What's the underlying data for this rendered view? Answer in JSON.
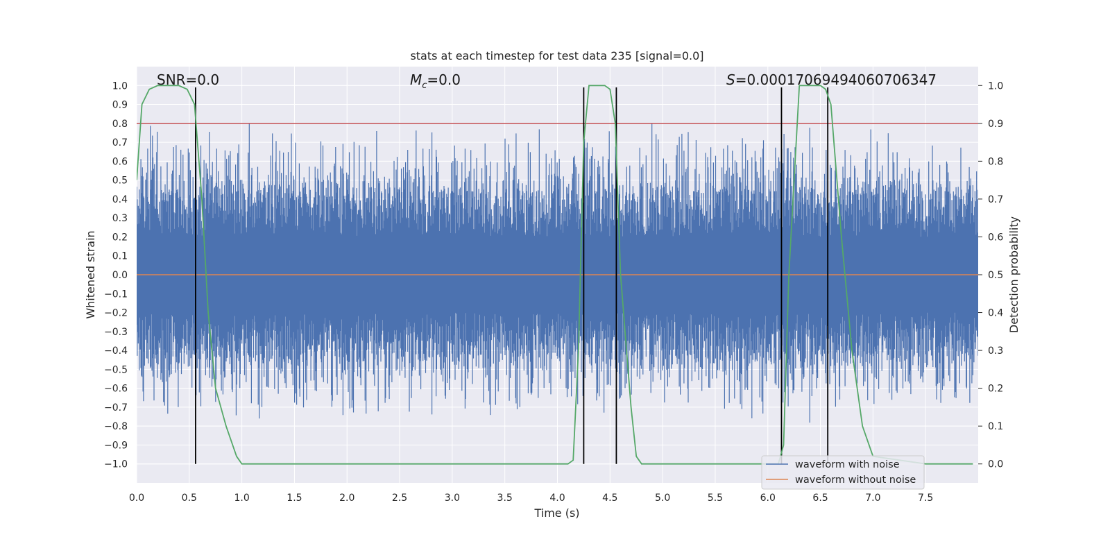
{
  "chart_data": {
    "type": "line",
    "title": "stats at each timestep for test data 235 [signal=0.0]",
    "xlabel": "Time (s)",
    "ylabel": "Whitened strain",
    "y2label": "Detection probability",
    "xlim": [
      0.0,
      8.0
    ],
    "ylim": [
      -1.1,
      1.1
    ],
    "y2lim": [
      -0.05,
      1.05
    ],
    "x_ticks": [
      "0.0",
      "0.5",
      "1.0",
      "1.5",
      "2.0",
      "2.5",
      "3.0",
      "3.5",
      "4.0",
      "4.5",
      "5.0",
      "5.5",
      "6.0",
      "6.5",
      "7.0",
      "7.5"
    ],
    "y_ticks": [
      "1.0",
      "0.9",
      "0.8",
      "0.7",
      "0.6",
      "0.5",
      "0.4",
      "0.3",
      "0.2",
      "0.1",
      "0.0",
      "−0.1",
      "−0.2",
      "−0.3",
      "−0.4",
      "−0.5",
      "−0.6",
      "−0.7",
      "−0.8",
      "−0.9",
      "−1.0"
    ],
    "y2_ticks": [
      "1.0",
      "0.9",
      "0.8",
      "0.7",
      "0.6",
      "0.5",
      "0.4",
      "0.3",
      "0.2",
      "0.1",
      "0.0"
    ],
    "grid": true,
    "legend_position": "lower-right",
    "annotations": {
      "snr": "SNR=0.0",
      "mc_symbol": "M",
      "mc_subscript": "c",
      "mc_value": "=0.0",
      "s_symbol": "S",
      "s_value": "=0.00017069494060706347"
    },
    "series": [
      {
        "name": "waveform with noise",
        "color": "#4c72b0",
        "description_kind": "dense noise, approximate envelope",
        "segments_t": [
          0.0,
          0.5,
          1.0,
          1.5,
          2.0,
          2.5,
          3.0,
          3.5,
          4.0,
          4.5,
          5.0,
          5.5,
          6.0,
          6.5,
          7.0,
          7.5,
          8.0
        ],
        "peak_max": 0.98,
        "peak_min": -1.0
      },
      {
        "name": "waveform without noise",
        "color": "#dd8452",
        "x": [
          0.0,
          8.0
        ],
        "y": [
          0.0,
          0.0
        ]
      },
      {
        "color": "#55a868",
        "axis": "right",
        "x": [
          0.0,
          0.05,
          0.12,
          0.2,
          0.3,
          0.4,
          0.48,
          0.55,
          0.62,
          0.68,
          0.75,
          0.85,
          0.95,
          1.0,
          1.5,
          2.0,
          2.5,
          3.0,
          3.5,
          4.0,
          4.1,
          4.15,
          4.2,
          4.25,
          4.3,
          4.35,
          4.45,
          4.5,
          4.55,
          4.6,
          4.7,
          4.75,
          4.8,
          5.0,
          5.5,
          6.0,
          6.1,
          6.15,
          6.2,
          6.3,
          6.4,
          6.5,
          6.55,
          6.6,
          6.7,
          6.8,
          6.9,
          7.0,
          7.5,
          7.95
        ],
        "y": [
          0.75,
          0.95,
          0.99,
          1.0,
          1.0,
          1.0,
          0.99,
          0.95,
          0.7,
          0.4,
          0.2,
          0.1,
          0.02,
          0.0,
          0.0,
          0.0,
          0.0,
          0.0,
          0.0,
          0.0,
          0.0,
          0.01,
          0.3,
          0.85,
          1.0,
          1.0,
          1.0,
          0.99,
          0.9,
          0.5,
          0.15,
          0.02,
          0.0,
          0.0,
          0.0,
          0.0,
          0.0,
          0.05,
          0.5,
          1.0,
          1.0,
          1.0,
          0.99,
          0.95,
          0.6,
          0.3,
          0.1,
          0.02,
          0.0,
          0.0
        ]
      }
    ],
    "threshold_line": {
      "axis": "right",
      "value": 0.9,
      "color": "#c44e52"
    },
    "vertical_lines": {
      "x": [
        0.56,
        4.25,
        4.56,
        6.13,
        6.57
      ],
      "y_range": [
        -1.0,
        0.99
      ],
      "color": "#000000"
    }
  }
}
